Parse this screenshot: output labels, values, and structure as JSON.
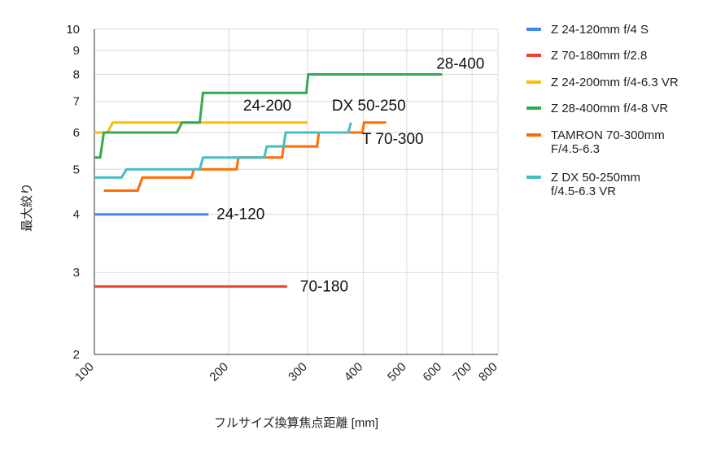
{
  "chart_data": {
    "type": "line",
    "title": "",
    "xlabel": "フルサイズ換算焦点距離 [mm]",
    "ylabel": "最大絞り",
    "x_scale": "log",
    "y_scale": "log",
    "xlim": [
      100,
      800
    ],
    "ylim": [
      2,
      10
    ],
    "x_ticks": [
      100,
      200,
      300,
      400,
      500,
      600,
      700,
      800
    ],
    "y_ticks": [
      2,
      3,
      4,
      5,
      6,
      7,
      8,
      9,
      10
    ],
    "grid": true,
    "legend_position": "right",
    "series": [
      {
        "name": "Z 24-120mm f/4 S",
        "color": "#4285f4",
        "annotation": "24-120",
        "points": [
          [
            100,
            4
          ],
          [
            180,
            4
          ]
        ]
      },
      {
        "name": "Z 70-180mm f/2.8",
        "color": "#ea4335",
        "annotation": "70-180",
        "points": [
          [
            100,
            2.8
          ],
          [
            270,
            2.8
          ]
        ]
      },
      {
        "name": "Z 24-200mm f/4-6.3 VR",
        "color": "#fbbc04",
        "annotation": "24-200",
        "points": [
          [
            100,
            6
          ],
          [
            107,
            6
          ],
          [
            110,
            6.3
          ],
          [
            300,
            6.3
          ]
        ]
      },
      {
        "name": "Z 28-400mm f/4-8 VR",
        "color": "#34a853",
        "annotation": "28-400",
        "points": [
          [
            100,
            5.3
          ],
          [
            103,
            5.3
          ],
          [
            105,
            6
          ],
          [
            153,
            6
          ],
          [
            157,
            6.3
          ],
          [
            172,
            6.3
          ],
          [
            175,
            7.3
          ],
          [
            298,
            7.3
          ],
          [
            301,
            8
          ],
          [
            600,
            8
          ]
        ]
      },
      {
        "name": "TAMRON 70-300mm F/4.5-6.3",
        "color": "#ff6d01",
        "annotation": "T 70-300",
        "points": [
          [
            105,
            4.5
          ],
          [
            125,
            4.5
          ],
          [
            128,
            4.8
          ],
          [
            165,
            4.8
          ],
          [
            167,
            5
          ],
          [
            208,
            5
          ],
          [
            210,
            5.3
          ],
          [
            263,
            5.3
          ],
          [
            265,
            5.6
          ],
          [
            315,
            5.6
          ],
          [
            318,
            6
          ],
          [
            398,
            6
          ],
          [
            401,
            6.3
          ],
          [
            450,
            6.3
          ]
        ]
      },
      {
        "name": "Z DX 50-250mm f/4.5-6.3 VR",
        "color": "#46bdc6",
        "annotation": "DX 50-250",
        "points": [
          [
            100,
            4.8
          ],
          [
            115,
            4.8
          ],
          [
            118,
            5
          ],
          [
            172,
            5
          ],
          [
            175,
            5.3
          ],
          [
            240,
            5.3
          ],
          [
            243,
            5.6
          ],
          [
            265,
            5.6
          ],
          [
            268,
            6
          ],
          [
            370,
            6
          ],
          [
            375,
            6.3
          ]
        ]
      }
    ]
  },
  "legend": [
    {
      "line1": "Z 24-120mm f/4 S",
      "line2": ""
    },
    {
      "line1": "Z 70-180mm f/2.8",
      "line2": ""
    },
    {
      "line1": "Z 24-200mm f/4-6.3 VR",
      "line2": ""
    },
    {
      "line1": "Z 28-400mm f/4-8 VR",
      "line2": ""
    },
    {
      "line1": "TAMRON 70-300mm",
      "line2": "F/4.5-6.3"
    },
    {
      "line1": "Z DX 50-250mm",
      "line2": "f/4.5-6.3 VR"
    }
  ]
}
